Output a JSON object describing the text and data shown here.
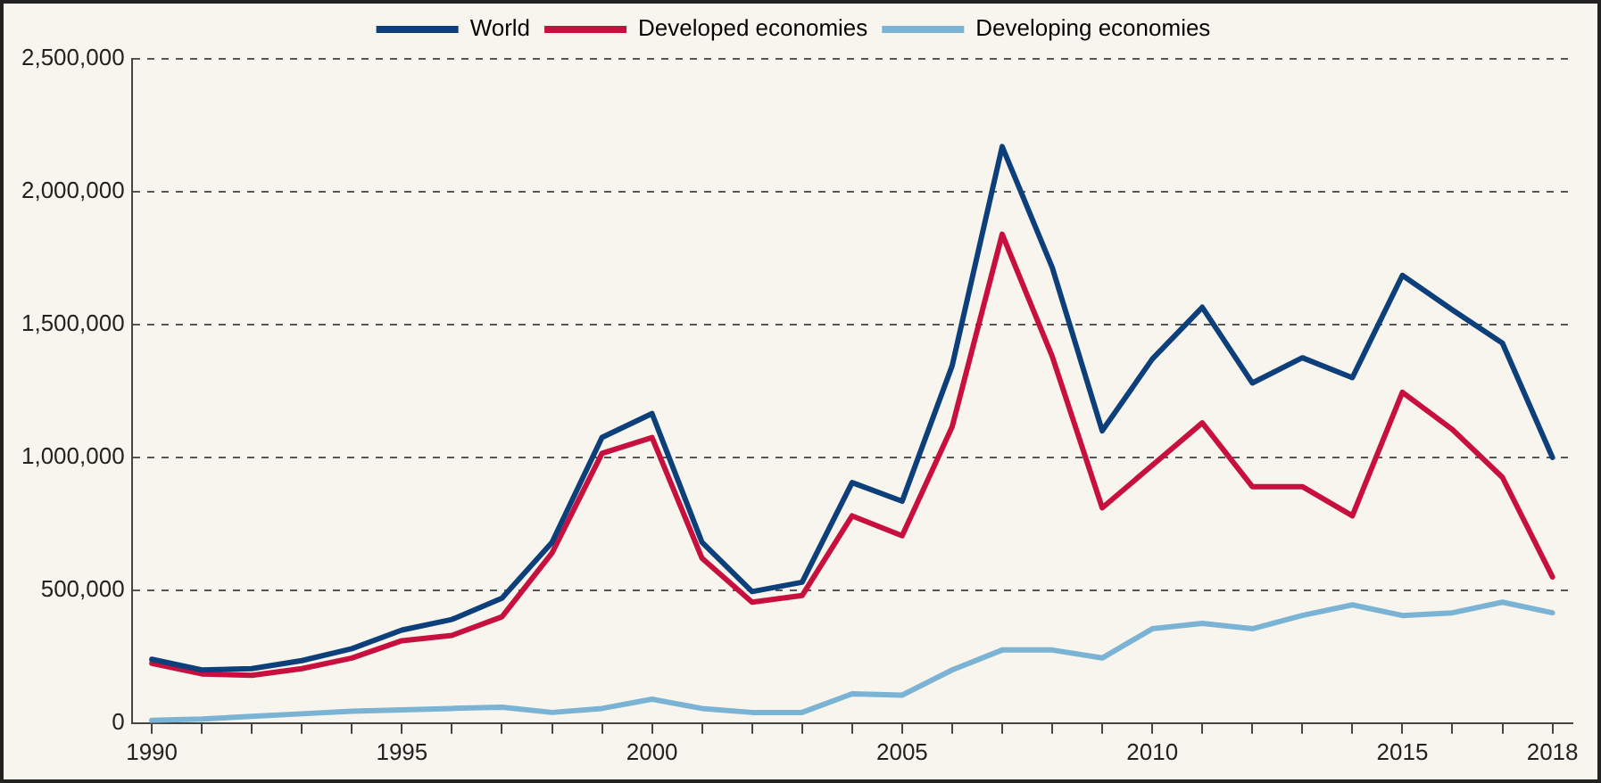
{
  "chart_data": {
    "type": "line",
    "x": [
      1990,
      1991,
      1992,
      1993,
      1994,
      1995,
      1996,
      1997,
      1998,
      1999,
      2000,
      2001,
      2002,
      2003,
      2004,
      2005,
      2006,
      2007,
      2008,
      2009,
      2010,
      2011,
      2012,
      2013,
      2014,
      2015,
      2016,
      2017,
      2018
    ],
    "series": [
      {
        "name": "World",
        "color": "#0d3f7a",
        "values": [
          240000,
          200000,
          205000,
          235000,
          280000,
          350000,
          390000,
          470000,
          680000,
          1075000,
          1165000,
          680000,
          495000,
          530000,
          905000,
          835000,
          1345000,
          2170000,
          1715000,
          1100000,
          1370000,
          1565000,
          1280000,
          1375000,
          1300000,
          1685000,
          1555000,
          1430000,
          1000000
        ]
      },
      {
        "name": "Developed economies",
        "color": "#c8103f",
        "values": [
          225000,
          185000,
          180000,
          205000,
          245000,
          310000,
          330000,
          400000,
          640000,
          1015000,
          1075000,
          620000,
          455000,
          480000,
          780000,
          705000,
          1115000,
          1840000,
          1380000,
          810000,
          970000,
          1130000,
          890000,
          890000,
          780000,
          1245000,
          1105000,
          925000,
          550000
        ]
      },
      {
        "name": "Developing economies",
        "color": "#7ab3d3",
        "values": [
          10000,
          15000,
          25000,
          35000,
          45000,
          50000,
          55000,
          60000,
          40000,
          55000,
          90000,
          55000,
          40000,
          40000,
          110000,
          105000,
          200000,
          275000,
          275000,
          245000,
          355000,
          375000,
          355000,
          405000,
          445000,
          405000,
          415000,
          455000,
          415000
        ]
      }
    ],
    "xlim": [
      1989.6,
      2018.4
    ],
    "xticks": [
      1990,
      {
        "value": 1991,
        "label": null
      },
      {
        "value": 1992,
        "label": null
      },
      {
        "value": 1993,
        "label": null
      },
      {
        "value": 1994,
        "label": null
      },
      1995,
      {
        "value": 1996,
        "label": null
      },
      {
        "value": 1997,
        "label": null
      },
      {
        "value": 1998,
        "label": null
      },
      {
        "value": 1999,
        "label": null
      },
      2000,
      {
        "value": 2001,
        "label": null
      },
      {
        "value": 2002,
        "label": null
      },
      {
        "value": 2003,
        "label": null
      },
      {
        "value": 2004,
        "label": null
      },
      2005,
      {
        "value": 2006,
        "label": null
      },
      {
        "value": 2007,
        "label": null
      },
      {
        "value": 2008,
        "label": null
      },
      {
        "value": 2009,
        "label": null
      },
      2010,
      {
        "value": 2011,
        "label": null
      },
      {
        "value": 2012,
        "label": null
      },
      {
        "value": 2013,
        "label": null
      },
      {
        "value": 2014,
        "label": null
      },
      2015,
      {
        "value": 2016,
        "label": null
      },
      {
        "value": 2017,
        "label": null
      },
      2018
    ],
    "ylim": [
      0,
      2500000
    ],
    "yticks": [
      0,
      {
        "value": 500000,
        "label": "500,000"
      },
      {
        "value": 1000000,
        "label": "1,000,000"
      },
      {
        "value": 1500000,
        "label": "1,500,000"
      },
      {
        "value": 2000000,
        "label": "2,000,000"
      },
      {
        "value": 2500000,
        "label": "2,500,000"
      }
    ],
    "grid": "y",
    "legend": "top",
    "marker": "none",
    "line_style": "solid"
  }
}
